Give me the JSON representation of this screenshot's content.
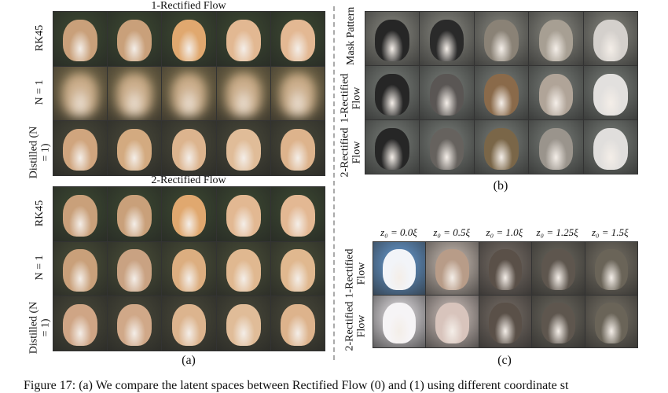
{
  "panel_a": {
    "label": "(a)",
    "groups": [
      {
        "title": "1-Rectified Flow",
        "rows": [
          {
            "label": "RK45",
            "faces": [
              "#c9a07a",
              "#c9a07a",
              "#e0a86f",
              "#e2b892",
              "#e3b893"
            ],
            "bg": "#3d4a32"
          },
          {
            "label": "N = 1",
            "faces": [
              "#c9ab88",
              "#c9ab88",
              "#c9ab88",
              "#c9ab88",
              "#c9ab88"
            ],
            "bg": "#8a7a52",
            "blur": true
          },
          {
            "label": "Distilled (N = 1)",
            "faces": [
              "#d0a57e",
              "#d3aa80",
              "#dcb48e",
              "#e0bc98",
              "#ddb38c"
            ],
            "bg": "#4a4a3a"
          }
        ]
      },
      {
        "title": "2-Rectified Flow",
        "rows": [
          {
            "label": "RK45",
            "faces": [
              "#c9a07a",
              "#c9a07a",
              "#e0a86f",
              "#e2b892",
              "#e3b893"
            ],
            "bg": "#3d4a32"
          },
          {
            "label": "N = 1",
            "faces": [
              "#c9a07a",
              "#c9a282",
              "#dcae80",
              "#e0b890",
              "#e0b88f"
            ],
            "bg": "#4a4f38"
          },
          {
            "label": "Distilled (N = 1)",
            "faces": [
              "#cfa585",
              "#d0a888",
              "#dcb48e",
              "#e0bc98",
              "#ddb38c"
            ],
            "bg": "#4a4a3a"
          }
        ]
      }
    ]
  },
  "panel_b": {
    "label": "(b)",
    "rows": [
      {
        "label": "Mask Pattern",
        "faces": [
          "#262626",
          "#2a2a2a",
          "#8a8276",
          "#a79f93",
          "#d4d0cc"
        ],
        "bg": "#8a8a82"
      },
      {
        "label": "1-Rectified Flow",
        "faces": [
          "#262626",
          "#5a5654",
          "#8a6a4a",
          "#b0a498",
          "#e2e0de"
        ],
        "bg": "#7a7f7a"
      },
      {
        "label": "2-Rectified Flow",
        "faces": [
          "#262626",
          "#66625e",
          "#7a6648",
          "#9a948c",
          "#e0dedc"
        ],
        "bg": "#7a7f7a"
      }
    ]
  },
  "panel_c": {
    "label": "(c)",
    "columns": [
      "z₀ = 0.0ξ",
      "z₀ = 0.5ξ",
      "z₀ = 1.0ξ",
      "z₀ = 1.25ξ",
      "z₀ = 1.5ξ"
    ],
    "rows": [
      {
        "label": "1-Rectified Flow",
        "faces": [
          "#f2f4f8",
          "#b89c88",
          "#5a5048",
          "#5e564e",
          "#6a6458"
        ],
        "bgs": [
          "#6aa0d8",
          "#cfc2b8",
          "#7a7068",
          "#6e6a60",
          "#7a7468"
        ]
      },
      {
        "label": "2-Rectified Flow",
        "faces": [
          "#f6f4f6",
          "#d8c4bc",
          "#5a5048",
          "#5e564e",
          "#6a6458"
        ],
        "bgs": [
          "#eeeaee",
          "#d6c8c2",
          "#7a7068",
          "#6e6a60",
          "#7a7468"
        ]
      }
    ]
  },
  "caption": "Figure 17: (a) We compare the latent spaces between Rectified Flow (0) and (1) using different coordinate st"
}
